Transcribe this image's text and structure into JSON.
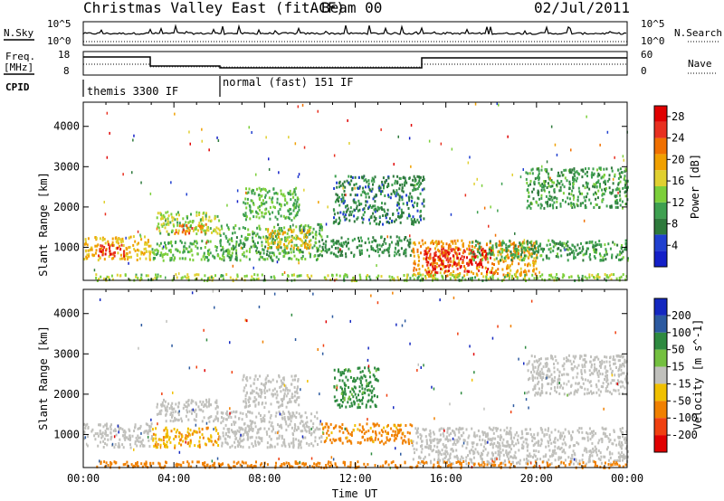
{
  "header": {
    "title": "Christmas Valley East (fitACF)",
    "beam": "Beam 00",
    "date": "02/Jul/2011"
  },
  "top_panels": {
    "nsky": {
      "label": "N.Sky",
      "tick_high": "10^5",
      "tick_low": "10^0"
    },
    "nsearch": {
      "label": "N.Search",
      "tick_high": "10^5",
      "tick_low": "10^0"
    },
    "freq": {
      "label_line1": "Freq.",
      "label_line2": "[MHz]",
      "tick_high": "18",
      "tick_low": "8"
    },
    "nave": {
      "label": "Nave",
      "tick_high": "60",
      "tick_low": "0"
    },
    "cpid": {
      "label": "CPID",
      "modes": [
        {
          "name": "themis 3300 IF",
          "start_hour": 0,
          "end_hour": 6
        },
        {
          "name": "normal (fast) 151 IF",
          "start_hour": 6,
          "end_hour": 24
        }
      ]
    }
  },
  "chart_data": [
    {
      "type": "heatmap",
      "title": "Power",
      "xlabel": "",
      "ylabel": "Slant Range [km]",
      "xlim": [
        0,
        24
      ],
      "ylim": [
        180,
        4600
      ],
      "y_ticks": [
        "1000",
        "2000",
        "3000",
        "4000"
      ],
      "colorbar": {
        "label": "Power [dB]",
        "ticks": [
          "4",
          "8",
          "12",
          "16",
          "20",
          "24",
          "28"
        ],
        "range": [
          0,
          30
        ]
      },
      "regions": [
        {
          "t0": 0.0,
          "t1": 3.0,
          "r0": 700,
          "r1": 1300,
          "value": 18
        },
        {
          "t0": 0.6,
          "t1": 1.8,
          "r0": 800,
          "r1": 1100,
          "value": 26
        },
        {
          "t0": 3.2,
          "t1": 6.0,
          "r0": 1350,
          "r1": 1900,
          "value": 14
        },
        {
          "t0": 4.0,
          "t1": 5.4,
          "r0": 1350,
          "r1": 1600,
          "value": 22
        },
        {
          "t0": 3.0,
          "t1": 6.0,
          "r0": 700,
          "r1": 1200,
          "value": 12
        },
        {
          "t0": 6.0,
          "t1": 10.5,
          "r0": 700,
          "r1": 1600,
          "value": 11
        },
        {
          "t0": 7.0,
          "t1": 9.5,
          "r0": 1700,
          "r1": 2500,
          "value": 12
        },
        {
          "t0": 8.0,
          "t1": 10.0,
          "r0": 1000,
          "r1": 1500,
          "value": 18
        },
        {
          "t0": 10.5,
          "t1": 14.5,
          "r0": 800,
          "r1": 1300,
          "value": 9
        },
        {
          "t0": 11.0,
          "t1": 15.0,
          "r0": 1600,
          "r1": 2800,
          "value": 8
        },
        {
          "t0": 14.5,
          "t1": 20.0,
          "r0": 300,
          "r1": 1200,
          "value": 20
        },
        {
          "t0": 15.0,
          "t1": 18.0,
          "r0": 400,
          "r1": 1000,
          "value": 27
        },
        {
          "t0": 17.0,
          "t1": 24.0,
          "r0": 700,
          "r1": 1200,
          "value": 10
        },
        {
          "t0": 19.5,
          "t1": 24.0,
          "r0": 2000,
          "r1": 3000,
          "value": 10
        },
        {
          "t0": 0.5,
          "t1": 24.0,
          "r0": 200,
          "r1": 360,
          "value": 14
        }
      ]
    },
    {
      "type": "heatmap",
      "title": "Velocity",
      "xlabel": "Time UT",
      "ylabel": "Slant Range [km]",
      "xlim": [
        0,
        24
      ],
      "ylim": [
        180,
        4600
      ],
      "x_ticks": [
        "00:00",
        "04:00",
        "08:00",
        "12:00",
        "16:00",
        "20:00",
        "00:00"
      ],
      "y_ticks": [
        "1000",
        "2000",
        "3000",
        "4000"
      ],
      "colorbar": {
        "label": "Velocity [m s^-1]",
        "ticks": [
          "200",
          "100",
          "50",
          "15",
          "-15",
          "-50",
          "-100",
          "-200"
        ],
        "range": [
          -250,
          250
        ]
      },
      "regions": [
        {
          "t0": 0.0,
          "t1": 3.0,
          "r0": 700,
          "r1": 1300,
          "value": 0
        },
        {
          "t0": 3.2,
          "t1": 6.0,
          "r0": 1350,
          "r1": 1900,
          "value": 0
        },
        {
          "t0": 3.0,
          "t1": 6.0,
          "r0": 700,
          "r1": 1200,
          "value": -30
        },
        {
          "t0": 6.0,
          "t1": 10.5,
          "r0": 700,
          "r1": 1600,
          "value": 0
        },
        {
          "t0": 7.0,
          "t1": 9.5,
          "r0": 1700,
          "r1": 2500,
          "value": 0
        },
        {
          "t0": 10.5,
          "t1": 14.5,
          "r0": 800,
          "r1": 1300,
          "value": -40
        },
        {
          "t0": 11.0,
          "t1": 13.0,
          "r0": 1700,
          "r1": 2700,
          "value": 40
        },
        {
          "t0": 14.5,
          "t1": 24.0,
          "r0": 300,
          "r1": 1200,
          "value": 0
        },
        {
          "t0": 19.5,
          "t1": 24.0,
          "r0": 2000,
          "r1": 3000,
          "value": 0
        },
        {
          "t0": 0.5,
          "t1": 24.0,
          "r0": 200,
          "r1": 360,
          "value": -60
        }
      ]
    }
  ]
}
